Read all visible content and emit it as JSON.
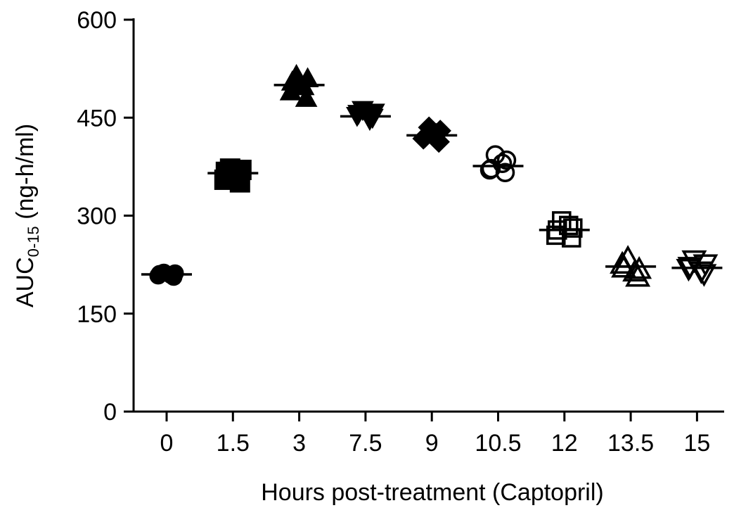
{
  "chart_data": {
    "type": "scatter",
    "title": "",
    "xlabel": "Hours post-treatment (Captopril)",
    "ylabel": {
      "main": "AUC",
      "subscript": "0-15",
      "unit": " (ng-h/ml)"
    },
    "ylim": [
      0,
      600
    ],
    "yticks": [
      0,
      150,
      300,
      450,
      600
    ],
    "categories": [
      "0",
      "1.5",
      "3",
      "7.5",
      "9",
      "10.5",
      "12",
      "13.5",
      "15"
    ],
    "markers": [
      "circle-filled",
      "square-filled",
      "triangle-up-filled",
      "triangle-down-filled",
      "diamond-filled",
      "circle-open",
      "square-open",
      "triangle-up-open",
      "triangle-down-open"
    ],
    "means": [
      210,
      365,
      500,
      452,
      423,
      376,
      278,
      222,
      220
    ],
    "points": [
      [
        211,
        206,
        213,
        209,
        208,
        212
      ],
      [
        367,
        351,
        372,
        360,
        355,
        370
      ],
      [
        505,
        480,
        515,
        498,
        490,
        510
      ],
      [
        456,
        450,
        462,
        447,
        453,
        458
      ],
      [
        420,
        413,
        435,
        425,
        418,
        430
      ],
      [
        372,
        366,
        393,
        380,
        370,
        385
      ],
      [
        278,
        266,
        292,
        285,
        270,
        281
      ],
      [
        220,
        206,
        235,
        214,
        226,
        218
      ],
      [
        222,
        211,
        232,
        215,
        219,
        226
      ]
    ],
    "colors": {
      "marker": "#000000",
      "axis": "#000000"
    },
    "grid": false,
    "legend": "none"
  }
}
